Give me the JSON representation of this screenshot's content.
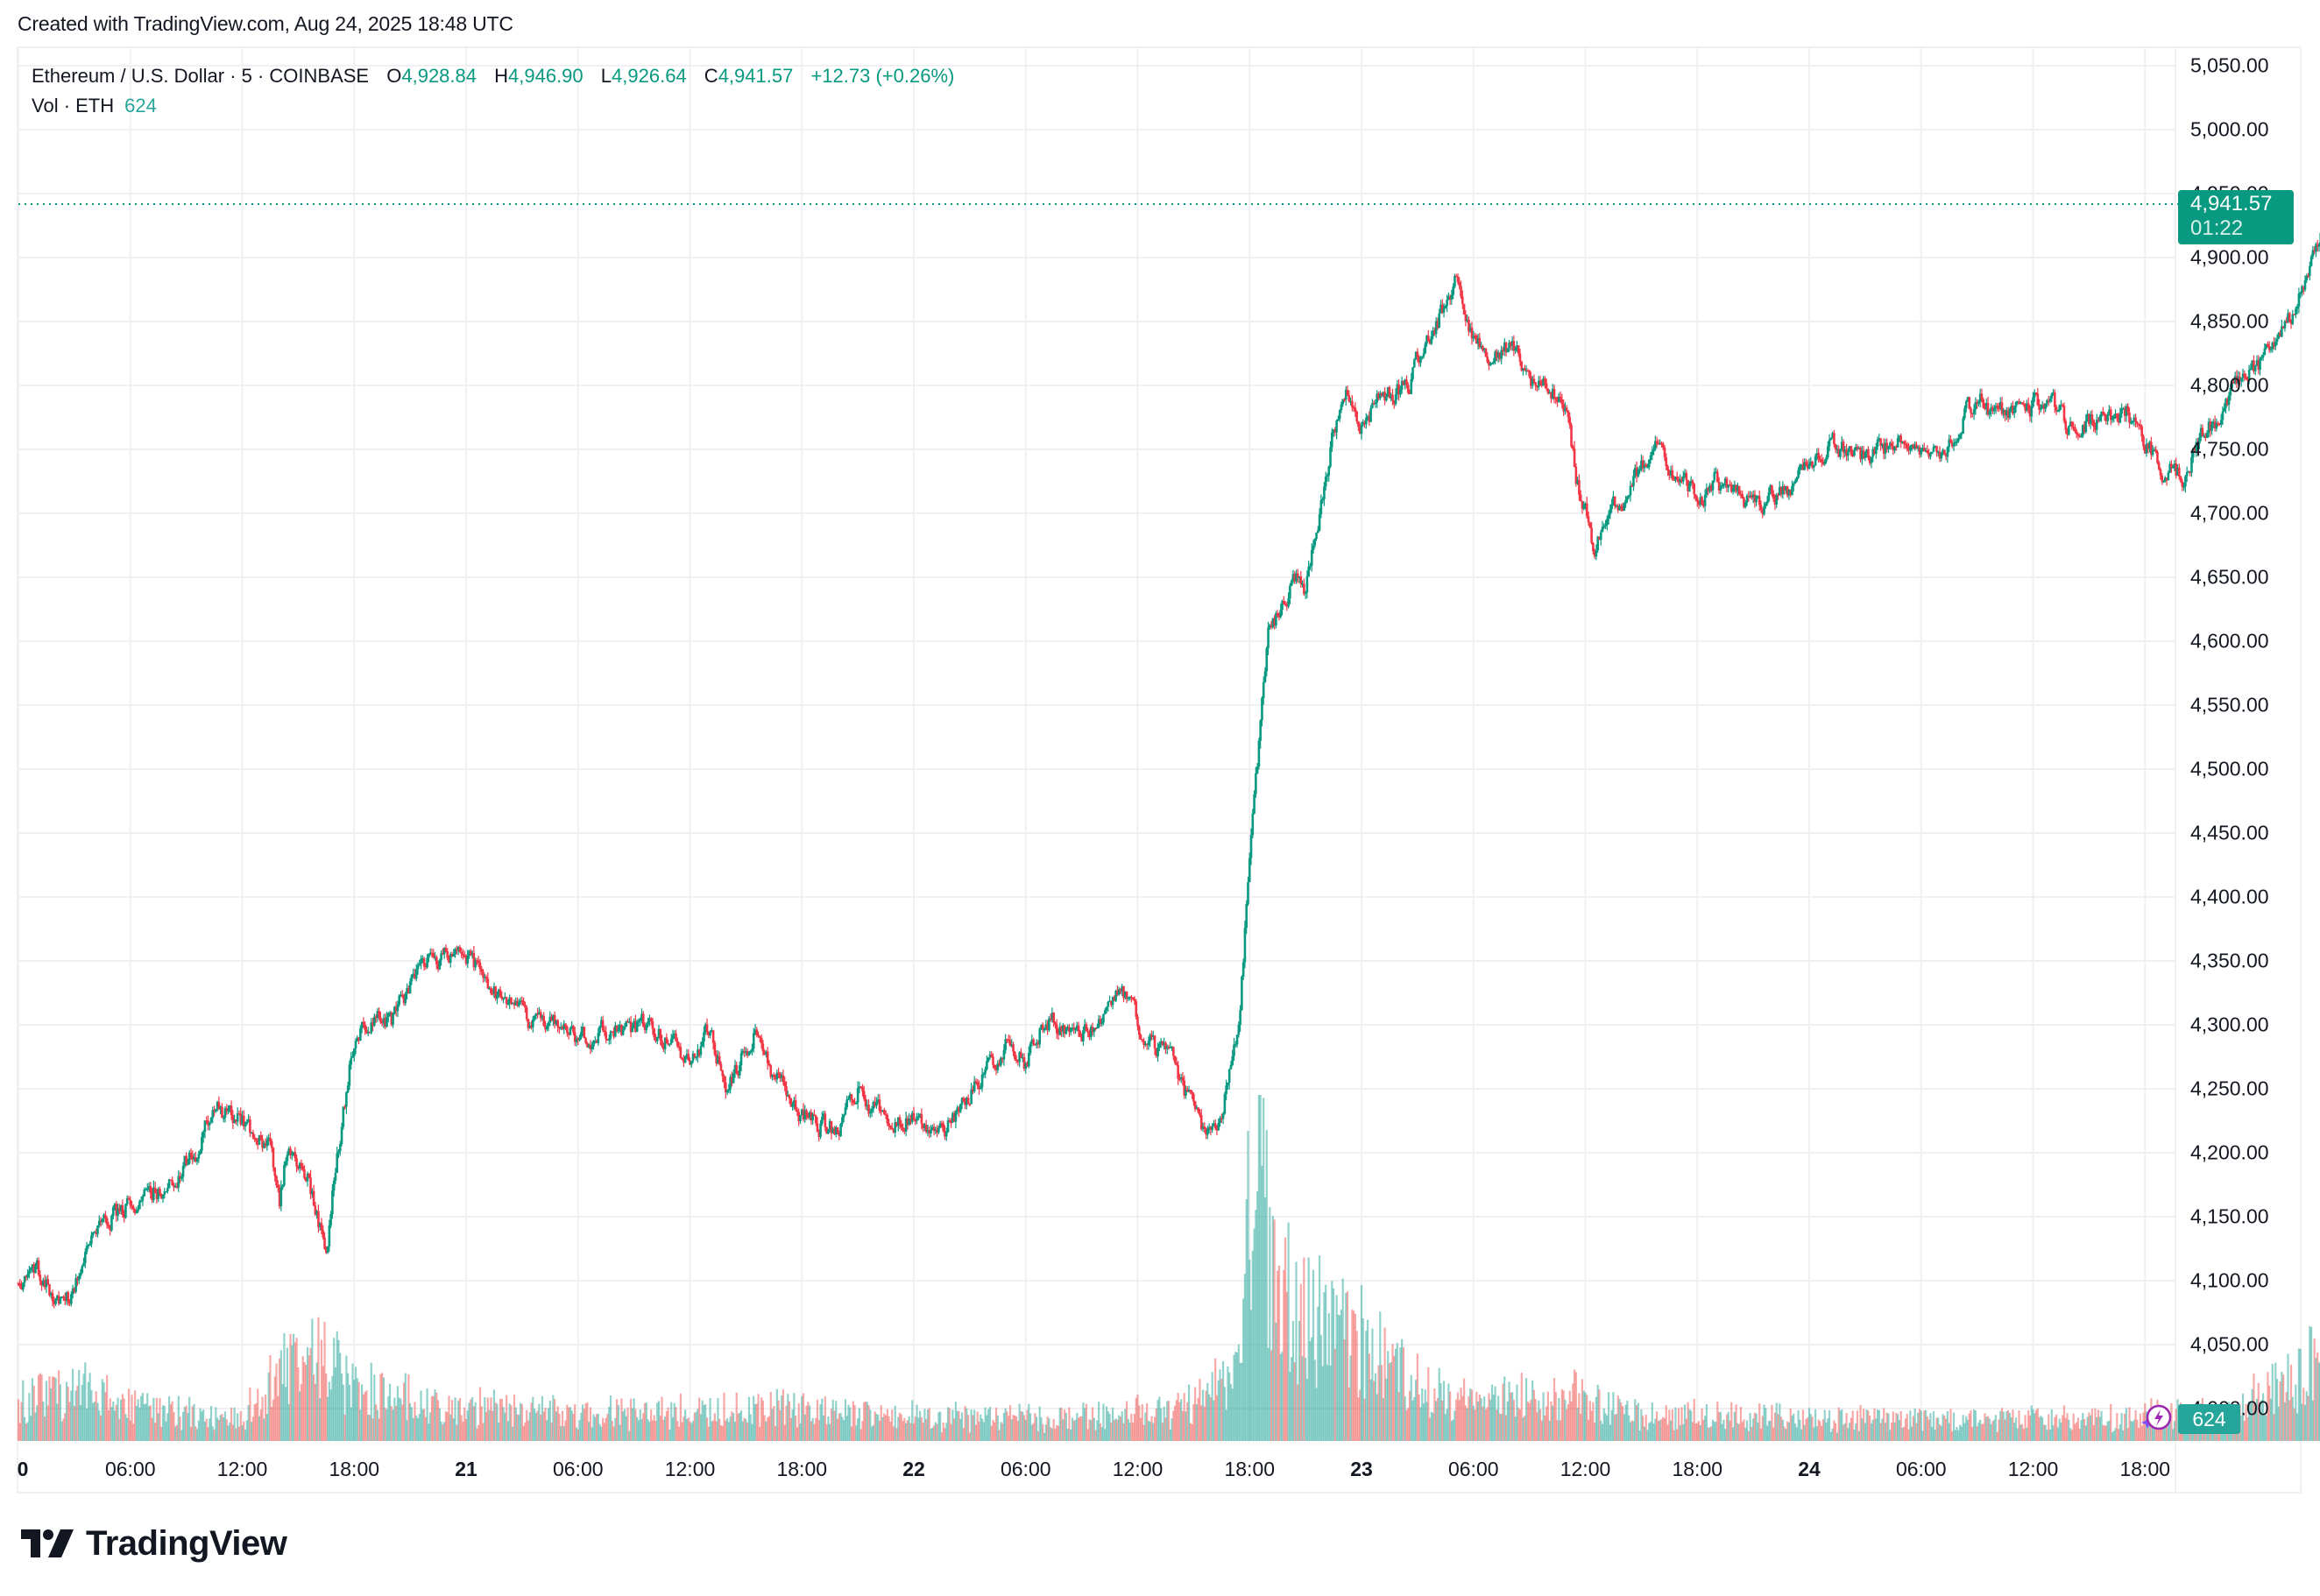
{
  "header": {
    "created_text": "Created with TradingView.com, Aug 24, 2025 18:48 UTC"
  },
  "legend": {
    "symbol": "Ethereum / U.S. Dollar · 5 · COINBASE",
    "open_label": "O",
    "open_value": "4,928.84",
    "high_label": "H",
    "high_value": "4,946.90",
    "low_label": "L",
    "low_value": "4,926.64",
    "close_label": "C",
    "close_value": "4,941.57",
    "change": "+12.73 (+0.26%)",
    "volume_label": "Vol · ETH",
    "volume_value": "624"
  },
  "price_tag": {
    "price": "4,941.57",
    "countdown": "01:22"
  },
  "volume_tag": {
    "value": "624"
  },
  "icons": {
    "alert": "lightning-alert-icon",
    "logo": "tradingview-logo-icon"
  },
  "branding": {
    "logo_text": "TradingView"
  },
  "colors": {
    "up": "#089981",
    "down": "#F23645",
    "vol_up": "rgba(38,166,154,0.5)",
    "vol_down": "rgba(239,83,80,0.5)",
    "grid": "#f0f0f3",
    "last_price_line": "#089981"
  },
  "chart_data": {
    "type": "candlestick",
    "title": "Ethereum / U.S. Dollar · 5 · COINBASE",
    "interval": "5 min",
    "xlabel": "",
    "ylabel": "Price (USD)",
    "ylim": [
      3975,
      5075
    ],
    "y_ticks": [
      "5,050.00",
      "5,000.00",
      "4,950.00",
      "4,900.00",
      "4,850.00",
      "4,800.00",
      "4,750.00",
      "4,700.00",
      "4,650.00",
      "4,600.00",
      "4,550.00",
      "4,500.00",
      "4,450.00",
      "4,400.00",
      "4,350.00",
      "4,300.00",
      "4,250.00",
      "4,200.00",
      "4,150.00",
      "4,100.00",
      "4,050.00",
      "4,000.00"
    ],
    "x_ticks": [
      {
        "label": "0",
        "hour": 0,
        "day": true
      },
      {
        "label": "06:00",
        "hour": 6
      },
      {
        "label": "12:00",
        "hour": 12
      },
      {
        "label": "18:00",
        "hour": 18
      },
      {
        "label": "21",
        "hour": 24,
        "day": true
      },
      {
        "label": "06:00",
        "hour": 30
      },
      {
        "label": "12:00",
        "hour": 36
      },
      {
        "label": "18:00",
        "hour": 42
      },
      {
        "label": "22",
        "hour": 48,
        "day": true
      },
      {
        "label": "06:00",
        "hour": 54
      },
      {
        "label": "12:00",
        "hour": 60
      },
      {
        "label": "18:00",
        "hour": 66
      },
      {
        "label": "23",
        "hour": 72,
        "day": true
      },
      {
        "label": "06:00",
        "hour": 78
      },
      {
        "label": "12:00",
        "hour": 84
      },
      {
        "label": "18:00",
        "hour": 90
      },
      {
        "label": "24",
        "hour": 96,
        "day": true
      },
      {
        "label": "06:00",
        "hour": 102
      },
      {
        "label": "12:00",
        "hour": 108
      },
      {
        "label": "18:00",
        "hour": 114
      }
    ],
    "grid": true,
    "legend_position": "top-left",
    "last": {
      "open": 4928.84,
      "high": 4946.9,
      "low": 4926.64,
      "close": 4941.57,
      "change": 12.73,
      "change_pct": 0.26,
      "volume": 624
    },
    "price_path_anchors": [
      [
        0,
        4098
      ],
      [
        1,
        4110
      ],
      [
        2.5,
        4075
      ],
      [
        4,
        4140
      ],
      [
        6,
        4160
      ],
      [
        8,
        4175
      ],
      [
        9.5,
        4200
      ],
      [
        10.5,
        4235
      ],
      [
        12,
        4225
      ],
      [
        13.5,
        4205
      ],
      [
        14,
        4160
      ],
      [
        14.5,
        4210
      ],
      [
        15.5,
        4180
      ],
      [
        16.5,
        4120
      ],
      [
        17,
        4190
      ],
      [
        18,
        4290
      ],
      [
        19,
        4310
      ],
      [
        20,
        4300
      ],
      [
        21,
        4330
      ],
      [
        22,
        4350
      ],
      [
        23,
        4355
      ],
      [
        24.5,
        4345
      ],
      [
        26,
        4315
      ],
      [
        28,
        4300
      ],
      [
        30,
        4290
      ],
      [
        32,
        4295
      ],
      [
        34,
        4300
      ],
      [
        36,
        4270
      ],
      [
        37,
        4295
      ],
      [
        38,
        4250
      ],
      [
        39.5,
        4295
      ],
      [
        40.5,
        4260
      ],
      [
        42,
        4230
      ],
      [
        44,
        4215
      ],
      [
        45,
        4250
      ],
      [
        46,
        4230
      ],
      [
        48,
        4225
      ],
      [
        49.5,
        4215
      ],
      [
        51,
        4245
      ],
      [
        53,
        4285
      ],
      [
        54,
        4270
      ],
      [
        55,
        4305
      ],
      [
        57,
        4290
      ],
      [
        59,
        4330
      ],
      [
        60,
        4300
      ],
      [
        62,
        4265
      ],
      [
        63.5,
        4215
      ],
      [
        64.5,
        4230
      ],
      [
        65.5,
        4310
      ],
      [
        66,
        4430
      ],
      [
        67,
        4600
      ],
      [
        67.5,
        4620
      ],
      [
        68.5,
        4650
      ],
      [
        69,
        4640
      ],
      [
        70,
        4720
      ],
      [
        71,
        4800
      ],
      [
        72,
        4770
      ],
      [
        73,
        4790
      ],
      [
        74.5,
        4800
      ],
      [
        75.5,
        4840
      ],
      [
        76.5,
        4860
      ],
      [
        77,
        4880
      ],
      [
        78,
        4840
      ],
      [
        79,
        4820
      ],
      [
        80,
        4830
      ],
      [
        81,
        4805
      ],
      [
        82,
        4800
      ],
      [
        83,
        4780
      ],
      [
        83.5,
        4730
      ],
      [
        84.5,
        4670
      ],
      [
        85,
        4700
      ],
      [
        86,
        4710
      ],
      [
        87,
        4735
      ],
      [
        88,
        4755
      ],
      [
        89,
        4725
      ],
      [
        90,
        4710
      ],
      [
        91,
        4725
      ],
      [
        93,
        4705
      ],
      [
        95,
        4720
      ],
      [
        96,
        4740
      ],
      [
        97,
        4755
      ],
      [
        99,
        4745
      ],
      [
        101,
        4755
      ],
      [
        103,
        4745
      ],
      [
        104,
        4770
      ],
      [
        105,
        4790
      ],
      [
        106,
        4775
      ],
      [
        107,
        4785
      ],
      [
        109,
        4785
      ],
      [
        110,
        4765
      ],
      [
        111,
        4770
      ],
      [
        113,
        4780
      ],
      [
        114,
        4755
      ],
      [
        115,
        4735
      ],
      [
        116,
        4730
      ],
      [
        117,
        4760
      ],
      [
        118,
        4775
      ],
      [
        119,
        4800
      ],
      [
        120,
        4815
      ],
      [
        121,
        4830
      ],
      [
        122,
        4860
      ],
      [
        123,
        4900
      ],
      [
        123.8,
        4941.57
      ]
    ],
    "volume_activity_anchors": [
      [
        0,
        0.12
      ],
      [
        3,
        0.15
      ],
      [
        8,
        0.08
      ],
      [
        12,
        0.06
      ],
      [
        14,
        0.2
      ],
      [
        15,
        0.28
      ],
      [
        17,
        0.22
      ],
      [
        19,
        0.14
      ],
      [
        24,
        0.1
      ],
      [
        30,
        0.08
      ],
      [
        36,
        0.08
      ],
      [
        40,
        0.1
      ],
      [
        44,
        0.08
      ],
      [
        48,
        0.07
      ],
      [
        56,
        0.06
      ],
      [
        62,
        0.09
      ],
      [
        65.5,
        0.2
      ],
      [
        66.3,
        0.95
      ],
      [
        67,
        0.6
      ],
      [
        68,
        0.45
      ],
      [
        70,
        0.35
      ],
      [
        72,
        0.3
      ],
      [
        74,
        0.2
      ],
      [
        76,
        0.15
      ],
      [
        78,
        0.1
      ],
      [
        80,
        0.13
      ],
      [
        84,
        0.12
      ],
      [
        86,
        0.08
      ],
      [
        96,
        0.06
      ],
      [
        104,
        0.06
      ],
      [
        112,
        0.06
      ],
      [
        118,
        0.08
      ],
      [
        121,
        0.15
      ],
      [
        123,
        0.25
      ],
      [
        123.8,
        0.12
      ]
    ]
  }
}
